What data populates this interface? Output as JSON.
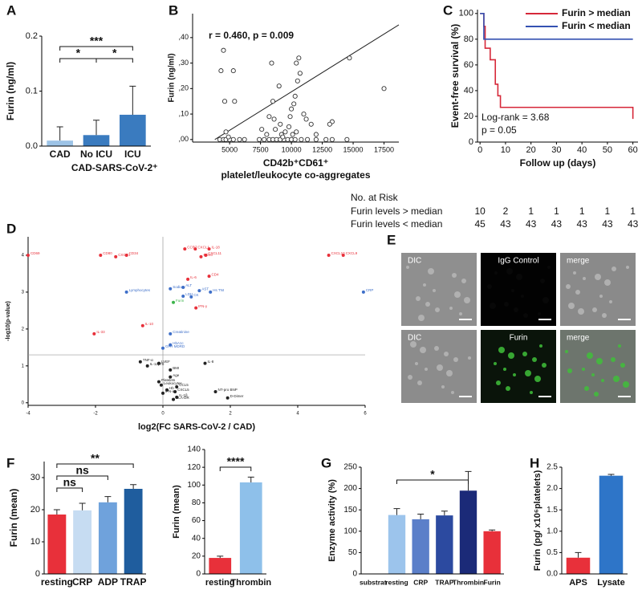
{
  "chart_data": [
    {
      "type": "bar",
      "panel": "A",
      "ylabel": "Furin (ng/ml)",
      "categories": [
        "CAD",
        "No ICU",
        "ICU"
      ],
      "values": [
        0.01,
        0.02,
        0.057
      ],
      "errors": [
        0.025,
        0.027,
        0.052
      ],
      "colors": [
        "#9dc3e6",
        "#3a7bbf",
        "#3a7bbf"
      ],
      "ylim": [
        0,
        0.2
      ],
      "yticks": [
        {
          "value": 0,
          "label": "0.0"
        },
        0.1,
        0.2
      ],
      "brackets": [
        {
          "from": 0,
          "to": 2,
          "label": "***"
        },
        {
          "from": 0,
          "to": 1,
          "label": "*"
        },
        {
          "from": 1,
          "to": 2,
          "label": "*"
        }
      ],
      "group_label": {
        "text": "CAD-SARS-CoV-2⁺",
        "from": 1,
        "to": 2
      }
    },
    {
      "type": "scatter",
      "panel": "B",
      "ylabel": "Furin (ng/ml)",
      "xlabel": [
        "CD42b⁺CD61⁺",
        "platelet/leukocyte co-aggregates"
      ],
      "annotation": "r = 0.460, p = 0.009",
      "color": "#333333",
      "marker": "hollow",
      "xlim": [
        2000,
        18700
      ],
      "xticks": [
        5000,
        7500,
        10000,
        12500,
        15000,
        17500
      ],
      "ylim": [
        -0.01,
        0.494
      ],
      "yticks": [
        {
          "value": 0,
          "label": ",00"
        },
        {
          "value": 0.1,
          "label": ",10"
        },
        {
          "value": 0.2,
          "label": ",20"
        },
        {
          "value": 0.3,
          "label": ",30"
        },
        {
          "value": 0.4,
          "label": ",40"
        }
      ],
      "trendline": {
        "x": [
          3800,
          18700
        ],
        "y": [
          0,
          0.45
        ]
      },
      "x": [
        4200,
        4500,
        4700,
        5000,
        5300,
        5800,
        6200,
        7400,
        7800,
        8200,
        8500,
        8800,
        9100,
        9400,
        9700,
        10000,
        10300,
        10800,
        11300,
        12000,
        12800,
        13300,
        14500,
        4500,
        4300,
        5300,
        4600,
        5400,
        4700,
        4900,
        8400,
        9000,
        8500,
        8200,
        8600,
        9100,
        8700,
        9200,
        9500,
        9800,
        9900,
        10000,
        10200,
        10300,
        10500,
        10700,
        10600,
        10400,
        11000,
        11200,
        11600,
        12000,
        13300,
        13100,
        10100,
        10400,
        9300,
        14700,
        17500,
        7600,
        8000
      ],
      "values": [
        0,
        0,
        0,
        0,
        0,
        0,
        0,
        0,
        0,
        0,
        0,
        0,
        0,
        0,
        0,
        0,
        0,
        0,
        0,
        0,
        0,
        0,
        0,
        0.35,
        0.27,
        0.27,
        0.15,
        0.15,
        0.03,
        0.01,
        0.3,
        0.21,
        0.15,
        0.09,
        0.08,
        0.06,
        0.04,
        0.02,
        0.03,
        0.05,
        0.09,
        0.12,
        0.14,
        0.17,
        0.23,
        0.26,
        0.32,
        0.3,
        0.1,
        0.08,
        0.06,
        0.02,
        0.07,
        0.06,
        0.02,
        0.03,
        0.01,
        0.32,
        0.2,
        0.04,
        0.02
      ]
    },
    {
      "type": "line",
      "panel": "C",
      "ylabel": "Event-free survival (%)",
      "xlabel": "Follow up (days)",
      "xlim": [
        -1,
        62
      ],
      "xticks": [
        0,
        10,
        20,
        30,
        40,
        50,
        60
      ],
      "ylim": [
        0,
        103
      ],
      "yticks": [
        0,
        20,
        40,
        60,
        80,
        100
      ],
      "legend": "upper right",
      "annotations": [
        "Log-rank = 3.68",
        "p = 0.05"
      ],
      "series": [
        {
          "name": "Furin > median",
          "color": "#d62839",
          "x": [
            0,
            1.5,
            1.5,
            2,
            2,
            4,
            4,
            6,
            6,
            7,
            7,
            8,
            8,
            60,
            60
          ],
          "values": [
            100,
            100,
            90,
            90,
            73,
            73,
            64,
            64,
            45,
            45,
            36,
            36,
            27,
            27,
            18
          ]
        },
        {
          "name": "Furin < median",
          "color": "#3451b2",
          "x": [
            0,
            1.5,
            1.5,
            60
          ],
          "values": [
            100,
            100,
            80,
            80
          ]
        }
      ],
      "risk_table": {
        "title": "No. at Risk",
        "rows": [
          {
            "label": "Furin levels > median",
            "values": [
              10,
              2,
              1,
              1,
              1,
              1,
              1
            ]
          },
          {
            "label": "Furin levels < median",
            "values": [
              45,
              43,
              43,
              43,
              43,
              43,
              43
            ]
          }
        ]
      }
    },
    {
      "type": "scatter",
      "panel": "D",
      "ylabel": "-log10(p-value)",
      "xlabel": "log2(FC SARS-CoV-2 / CAD)",
      "xlim": [
        -4.0,
        6.0
      ],
      "xticks": [
        -4,
        -2,
        0,
        2,
        4,
        6
      ],
      "ylim": [
        -0.07,
        4.5
      ],
      "yticks": [
        0,
        1,
        2,
        3,
        4
      ],
      "hline": 1.3,
      "vline": 0,
      "labels": [
        "CD69",
        "CD80",
        "CXCR1",
        "CD34",
        "CCR7",
        "CXCL1",
        "CXCL11",
        "IL-18",
        "CD40",
        "IL-6",
        "CD4",
        "CXCL10",
        "CXCL9",
        "IFN-γ",
        "IL-10",
        "IL-33",
        "Lymphocytes",
        "Sodium",
        "ALT",
        "LDH",
        "AST",
        "Hs TNI",
        "CRP",
        "CK",
        "Creatinine",
        "HbA1c",
        "GFR MDRD",
        "Furin",
        "TNF-α",
        "IL-12p70",
        "LVEF",
        "IL-8",
        "BMI",
        "Age",
        "Platelets",
        "Leukocytes",
        "Hb",
        "IFN-α",
        "CCL5",
        "CXCL5",
        "IL-1β",
        "HLA-DR",
        "NT-pro BNP",
        "D-Dimer"
      ],
      "x": [
        -4.0,
        -1.85,
        -1.4,
        -1.08,
        0.65,
        0.96,
        1.27,
        1.37,
        1.13,
        0.74,
        1.37,
        4.92,
        5.35,
        0.98,
        -0.6,
        -2.04,
        -1.08,
        0.22,
        0.6,
        0.6,
        1.08,
        1.41,
        5.95,
        0.84,
        0.22,
        0.22,
        0,
        0.31,
        -0.67,
        -0.46,
        -0.12,
        1.25,
        0.22,
        0.22,
        -0.12,
        -0.05,
        0.12,
        0,
        0.41,
        0.36,
        0.41,
        0.31,
        1.56,
        1.92
      ],
      "values": [
        4.0,
        4.0,
        3.96,
        4.0,
        4.17,
        4.17,
        4.0,
        4.17,
        3.96,
        3.35,
        3.43,
        4.0,
        4.0,
        2.57,
        2.09,
        1.87,
        3.0,
        3.09,
        3.13,
        2.89,
        3.04,
        3.0,
        3.0,
        2.87,
        1.87,
        1.57,
        1.48,
        2.72,
        1.11,
        1.0,
        1.07,
        1.07,
        0.89,
        0.7,
        0.57,
        0.48,
        0.35,
        0.26,
        0.43,
        0.3,
        0.15,
        0.09,
        0.3,
        0.13
      ],
      "colors": [
        "#e8303a",
        "#e8303a",
        "#e8303a",
        "#e8303a",
        "#e8303a",
        "#e8303a",
        "#e8303a",
        "#e8303a",
        "#e8303a",
        "#e8303a",
        "#e8303a",
        "#e8303a",
        "#e8303a",
        "#e8303a",
        "#e8303a",
        "#e8303a",
        "#3e6fc9",
        "#3e6fc9",
        "#3e6fc9",
        "#3e6fc9",
        "#3e6fc9",
        "#3e6fc9",
        "#3e6fc9",
        "#3e6fc9",
        "#3e6fc9",
        "#3e6fc9",
        "#3e6fc9",
        "#3cb44b",
        "#222222",
        "#222222",
        "#222222",
        "#222222",
        "#222222",
        "#222222",
        "#222222",
        "#222222",
        "#222222",
        "#222222",
        "#222222",
        "#222222",
        "#222222",
        "#222222",
        "#222222",
        "#222222"
      ]
    },
    {
      "type": "bar",
      "panel": "F",
      "ylabel": "Furin (mean)",
      "categories": [
        "resting",
        "CRP",
        "ADP",
        "TRAP"
      ],
      "values": [
        18.5,
        19.8,
        22.3,
        26.5
      ],
      "errors": [
        1.5,
        2.2,
        1.8,
        1.3
      ],
      "colors": [
        "#e8303a",
        "#c6dcf2",
        "#6fa2dc",
        "#1f5d9e"
      ],
      "ylim": [
        0,
        35
      ],
      "yticks": [
        0,
        10,
        20,
        30
      ],
      "brackets": [
        {
          "from": 0,
          "to": 3,
          "label": "**"
        },
        {
          "from": 0,
          "to": 2,
          "label": "ns"
        },
        {
          "from": 0,
          "to": 1,
          "label": "ns"
        }
      ]
    },
    {
      "type": "bar",
      "ylabel": "Furin (mean)",
      "categories": [
        "resting",
        "Thrombin"
      ],
      "values": [
        18,
        103
      ],
      "errors": [
        2,
        6
      ],
      "colors": [
        "#e8303a",
        "#8ec0ea"
      ],
      "ylim": [
        0,
        140
      ],
      "yticks": [
        0,
        20,
        40,
        60,
        80,
        100,
        120,
        140
      ],
      "brackets": [
        {
          "from": 0,
          "to": 1,
          "label": "****"
        }
      ]
    },
    {
      "type": "bar",
      "panel": "G",
      "ylabel": "Enzyme activity (%)",
      "categories": [
        "substrat",
        "resting",
        "CRP",
        "TRAP",
        "Thrombin",
        "Furin"
      ],
      "values": [
        0,
        138,
        128,
        137,
        195,
        100
      ],
      "errors": [
        0,
        15,
        12,
        10,
        45,
        3
      ],
      "colors": [
        "#9cc4ec",
        "#9cc4ec",
        "#5b7fc9",
        "#2c4aa0",
        "#1b2a78",
        "#e8303a"
      ],
      "ylim": [
        0,
        250
      ],
      "yticks": [
        0,
        50,
        100,
        150,
        200,
        250
      ],
      "brackets": [
        {
          "from": 1,
          "to": 4,
          "label": "*"
        }
      ]
    },
    {
      "type": "bar",
      "panel": "H",
      "ylabel": "Furin (pg/ x10⁶platelets)",
      "categories": [
        "APS",
        "Lysate"
      ],
      "values": [
        0.38,
        2.3
      ],
      "errors": [
        0.12,
        0.03
      ],
      "colors": [
        "#e8303a",
        "#2e75c8"
      ],
      "ylim": [
        0,
        2.5
      ],
      "yticks": [
        {
          "value": 0,
          "label": "0.0"
        },
        0.5,
        {
          "value": 1,
          "label": "1.0"
        },
        1.5,
        {
          "value": 2,
          "label": "2.0"
        },
        2.5
      ]
    }
  ],
  "image_panel": {
    "panel": "E",
    "labels": [
      [
        "DIC",
        "IgG Control",
        "merge"
      ],
      [
        "DIC",
        "Furin",
        "merge"
      ]
    ]
  }
}
